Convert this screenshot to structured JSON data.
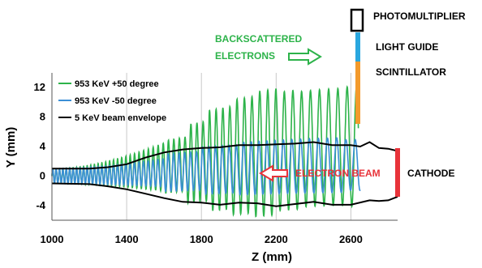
{
  "chart_data": {
    "type": "line",
    "title": "",
    "xlabel": "Z (mm)",
    "ylabel": "Y (mm)",
    "xlim": [
      1000,
      2850
    ],
    "ylim": [
      -6,
      14
    ],
    "xticks": [
      1000,
      1400,
      1800,
      2200,
      2600
    ],
    "yticks": [
      -4,
      0,
      4,
      8,
      12
    ],
    "grid": "vertical only",
    "legend_placement": "top-left",
    "series": [
      {
        "name": "953 KeV +50 degree",
        "color": "#2db34a",
        "kind": "oscillation",
        "z_start": 1000,
        "z_end": 2640,
        "period_mm": [
          18,
          50
        ],
        "center_y": [
          0,
          4
        ],
        "amplitude_y": [
          1,
          8.5
        ],
        "peak_tops": [
          [
            1660,
            5
          ],
          [
            1780,
            8
          ],
          [
            1900,
            10.5
          ],
          [
            2020,
            12
          ],
          [
            2140,
            13
          ],
          [
            2260,
            12
          ],
          [
            2380,
            11.5
          ],
          [
            2500,
            11.5
          ],
          [
            2620,
            11.8
          ]
        ]
      },
      {
        "name": "953 KeV -50 degree",
        "color": "#3b8fd6",
        "kind": "oscillation",
        "z_start": 1000,
        "z_end": 2650,
        "period_mm": [
          18,
          50
        ],
        "center_y": [
          0,
          1.5
        ],
        "amplitude_y": [
          1,
          4
        ],
        "peak_tops": [
          [
            1700,
            3.5
          ],
          [
            1900,
            4.5
          ],
          [
            2100,
            5
          ],
          [
            2300,
            5
          ],
          [
            2500,
            5
          ],
          [
            2640,
            4.5
          ]
        ]
      },
      {
        "name": "5 KeV beam envelope",
        "color": "#000000",
        "kind": "envelope",
        "upper": [
          [
            1000,
            1
          ],
          [
            1200,
            1
          ],
          [
            1300,
            1.2
          ],
          [
            1400,
            1.6
          ],
          [
            1500,
            2.5
          ],
          [
            1600,
            3.2
          ],
          [
            1700,
            3.6
          ],
          [
            1800,
            3.8
          ],
          [
            1900,
            3.9
          ],
          [
            2000,
            4.2
          ],
          [
            2100,
            4.2
          ],
          [
            2200,
            4.3
          ],
          [
            2300,
            4.4
          ],
          [
            2400,
            4.6
          ],
          [
            2500,
            4.2
          ],
          [
            2600,
            4.2
          ],
          [
            2650,
            4.0
          ],
          [
            2700,
            4.6
          ],
          [
            2750,
            3.8
          ],
          [
            2800,
            3.7
          ],
          [
            2850,
            3.4
          ]
        ],
        "lower": [
          [
            1000,
            -1
          ],
          [
            1200,
            -1.1
          ],
          [
            1300,
            -1.4
          ],
          [
            1400,
            -1.8
          ],
          [
            1500,
            -2.4
          ],
          [
            1600,
            -3.0
          ],
          [
            1700,
            -3.5
          ],
          [
            1800,
            -3.6
          ],
          [
            1900,
            -3.9
          ],
          [
            2000,
            -3.6
          ],
          [
            2100,
            -3.7
          ],
          [
            2200,
            -4.1
          ],
          [
            2300,
            -3.8
          ],
          [
            2400,
            -3.5
          ],
          [
            2500,
            -3.9
          ],
          [
            2600,
            -3.9
          ],
          [
            2700,
            -3.3
          ],
          [
            2750,
            -3.4
          ],
          [
            2800,
            -3.3
          ],
          [
            2850,
            -2.8
          ]
        ]
      }
    ],
    "annotations": {
      "backscattered": "BACKSCATTERED\nELECTRONS",
      "electron_beam": "ELECTRON BEAM",
      "photomultiplier": "PHOTOMULTIPLIER",
      "light_guide": "LIGHT GUIDE",
      "scintillator": "SCINTILLATOR",
      "cathode": "CATHODE"
    },
    "colors": {
      "green": "#2db34a",
      "blue": "#3b8fd6",
      "black": "#000000",
      "red": "#e8333a",
      "orange": "#f39a2c",
      "light_guide": "#2aa7df"
    }
  }
}
